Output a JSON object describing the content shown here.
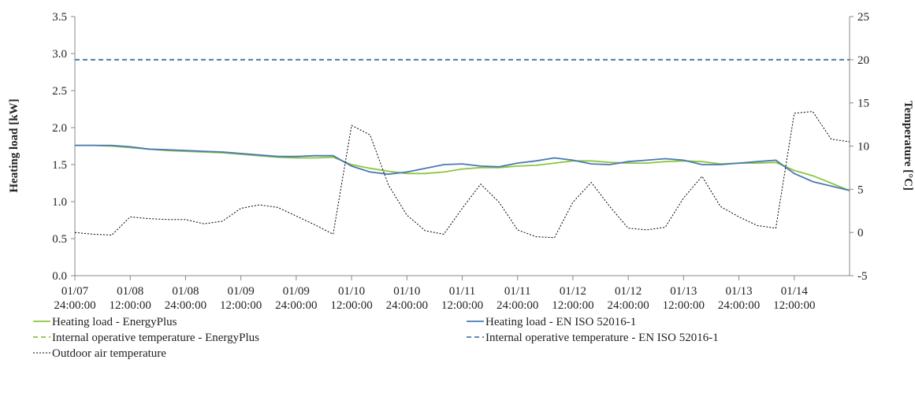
{
  "chart_data": {
    "type": "line",
    "ylabel": "Heating load [kW]",
    "y2label": "Temperature [°C]",
    "x": [
      0,
      4,
      8,
      12,
      16,
      20,
      24,
      28,
      32,
      36,
      40,
      44,
      48,
      52,
      56,
      60,
      64,
      68,
      72,
      76,
      80,
      84,
      88,
      92,
      96,
      100,
      104,
      108,
      112,
      116,
      120,
      124,
      128,
      132,
      136,
      140,
      144,
      148,
      152,
      156,
      160,
      164,
      168
    ],
    "xlim": [
      0,
      168
    ],
    "xticks": [
      {
        "value": 0,
        "label": "01/07 24:00:00"
      },
      {
        "value": 12,
        "label": "01/08 12:00:00"
      },
      {
        "value": 24,
        "label": "01/08 24:00:00"
      },
      {
        "value": 36,
        "label": "01/09 12:00:00"
      },
      {
        "value": 48,
        "label": "01/09 24:00:00"
      },
      {
        "value": 60,
        "label": "01/10 12:00:00"
      },
      {
        "value": 72,
        "label": "01/10 24:00:00"
      },
      {
        "value": 84,
        "label": "01/11 12:00:00"
      },
      {
        "value": 96,
        "label": "01/11 24:00:00"
      },
      {
        "value": 108,
        "label": "01/12 12:00:00"
      },
      {
        "value": 120,
        "label": "01/12 24:00:00"
      },
      {
        "value": 132,
        "label": "01/13 12:00:00"
      },
      {
        "value": 144,
        "label": "01/13 24:00:00"
      },
      {
        "value": 156,
        "label": "01/14 12:00:00"
      }
    ],
    "ylim": [
      0,
      3.5
    ],
    "yticks": [
      {
        "value": 0,
        "label": "0.0"
      },
      0.5,
      {
        "value": 1,
        "label": "1.0"
      },
      1.5,
      {
        "value": 2,
        "label": "2.0"
      },
      2.5,
      {
        "value": 3,
        "label": "3.0"
      },
      3.5
    ],
    "y2lim": [
      -5,
      25
    ],
    "y2ticks": [
      -5,
      0,
      5,
      10,
      15,
      20,
      25
    ],
    "series": [
      {
        "name": "Heating load - EnergyPlus",
        "color": "#8cc63f",
        "dash": "solid",
        "values": [
          1.76,
          1.76,
          1.75,
          1.73,
          1.71,
          1.69,
          1.68,
          1.67,
          1.66,
          1.64,
          1.62,
          1.6,
          1.59,
          1.59,
          1.6,
          1.5,
          1.45,
          1.41,
          1.38,
          1.38,
          1.4,
          1.44,
          1.46,
          1.46,
          1.48,
          1.49,
          1.52,
          1.55,
          1.55,
          1.53,
          1.52,
          1.52,
          1.54,
          1.55,
          1.54,
          1.51,
          1.52,
          1.52,
          1.53,
          1.42,
          1.35,
          1.25,
          1.15
        ]
      },
      {
        "name": "Heating load - EN ISO 52016-1",
        "color": "#4a78b5",
        "dash": "solid",
        "values": [
          1.76,
          1.76,
          1.76,
          1.74,
          1.71,
          1.7,
          1.69,
          1.68,
          1.67,
          1.65,
          1.63,
          1.61,
          1.61,
          1.62,
          1.62,
          1.48,
          1.4,
          1.37,
          1.4,
          1.45,
          1.5,
          1.51,
          1.48,
          1.47,
          1.52,
          1.55,
          1.59,
          1.56,
          1.51,
          1.5,
          1.54,
          1.56,
          1.58,
          1.56,
          1.5,
          1.5,
          1.52,
          1.54,
          1.56,
          1.38,
          1.27,
          1.21,
          1.15
        ]
      },
      {
        "name": "Internal operative temperature - EnergyPlus",
        "color": "#8cc63f",
        "dash": "dashed",
        "axis": "y2",
        "values": [
          20,
          20,
          20,
          20,
          20,
          20,
          20,
          20,
          20,
          20,
          20,
          20,
          20,
          20,
          20,
          20,
          20,
          20,
          20,
          20,
          20,
          20,
          20,
          20,
          20,
          20,
          20,
          20,
          20,
          20,
          20,
          20,
          20,
          20,
          20,
          20,
          20,
          20,
          20,
          20,
          20,
          20,
          20
        ]
      },
      {
        "name": "Internal operative temperature - EN ISO 52016-1",
        "color": "#4a78b5",
        "dash": "dashed",
        "axis": "y2",
        "values": [
          20,
          20,
          20,
          20,
          20,
          20,
          20,
          20,
          20,
          20,
          20,
          20,
          20,
          20,
          20,
          20,
          20,
          20,
          20,
          20,
          20,
          20,
          20,
          20,
          20,
          20,
          20,
          20,
          20,
          20,
          20,
          20,
          20,
          20,
          20,
          20,
          20,
          20,
          20,
          20,
          20,
          20,
          20
        ]
      },
      {
        "name": "Outdoor air temperature",
        "color": "#000000",
        "dash": "dotted",
        "axis": "y2",
        "values": [
          0,
          -0.2,
          -0.3,
          1.8,
          1.6,
          1.5,
          1.5,
          1.0,
          1.3,
          2.8,
          3.2,
          2.9,
          1.9,
          0.9,
          -0.2,
          12.4,
          11.3,
          5.5,
          2.0,
          0.2,
          -0.2,
          2.8,
          5.6,
          3.5,
          0.3,
          -0.5,
          -0.6,
          3.5,
          5.8,
          3.0,
          0.5,
          0.3,
          0.6,
          4.0,
          6.5,
          3.0,
          1.8,
          0.8,
          0.5,
          13.8,
          14.0,
          10.8,
          10.5
        ]
      }
    ]
  }
}
